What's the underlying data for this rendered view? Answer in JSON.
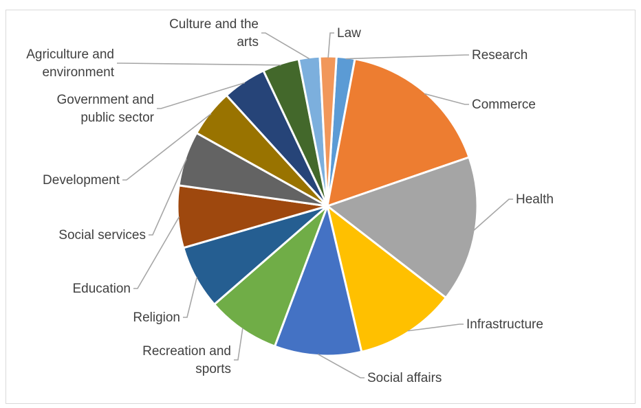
{
  "chart_data": {
    "type": "pie",
    "title": "",
    "legend": "none",
    "labels_on_chart": true,
    "slices": [
      {
        "name": "Research",
        "value": 2.0,
        "color": "#5b9bd5",
        "label_lines": [
          "Research"
        ]
      },
      {
        "name": "Commerce",
        "value": 17.0,
        "color": "#ed7d31",
        "label_lines": [
          "Commerce"
        ]
      },
      {
        "name": "Health",
        "value": 16.0,
        "color": "#a5a5a5",
        "label_lines": [
          "Health"
        ]
      },
      {
        "name": "Infrastructure",
        "value": 11.0,
        "color": "#ffc000",
        "label_lines": [
          "Infrastructure"
        ]
      },
      {
        "name": "Social affairs",
        "value": 9.5,
        "color": "#4472c4",
        "label_lines": [
          "Social affairs"
        ]
      },
      {
        "name": "Recreation and sports",
        "value": 8.0,
        "color": "#70ad47",
        "label_lines": [
          "Recreation and",
          "sports"
        ]
      },
      {
        "name": "Religion",
        "value": 7.0,
        "color": "#255e91",
        "label_lines": [
          "Religion"
        ]
      },
      {
        "name": "Education",
        "value": 6.8,
        "color": "#9e480e",
        "label_lines": [
          "Education"
        ]
      },
      {
        "name": "Social services",
        "value": 6.0,
        "color": "#636363",
        "label_lines": [
          "Social services"
        ]
      },
      {
        "name": "Development",
        "value": 5.2,
        "color": "#997300",
        "label_lines": [
          "Development"
        ]
      },
      {
        "name": "Government and public sector",
        "value": 4.8,
        "color": "#264478",
        "label_lines": [
          "Government and",
          "public sector"
        ]
      },
      {
        "name": "Agriculture and environment",
        "value": 4.0,
        "color": "#43682b",
        "label_lines": [
          "Agriculture and",
          "environment"
        ]
      },
      {
        "name": "Culture and the arts",
        "value": 2.3,
        "color": "#7cafdd",
        "label_lines": [
          "Culture and the",
          "arts"
        ]
      },
      {
        "name": "Law",
        "value": 1.8,
        "color": "#f1975a",
        "label_lines": [
          "Law"
        ]
      }
    ]
  }
}
